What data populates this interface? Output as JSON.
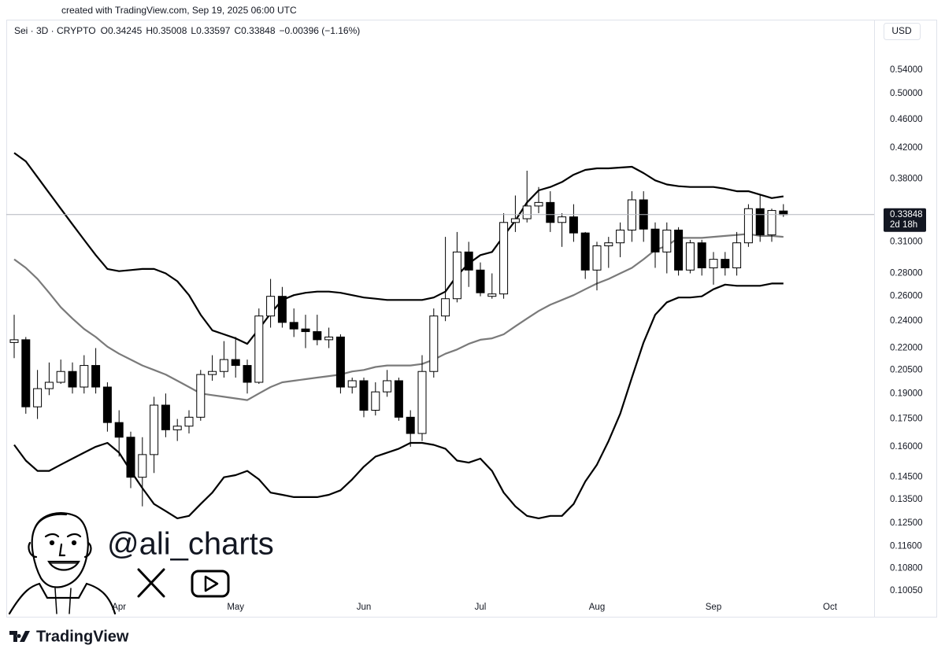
{
  "header": {
    "created": "created with TradingView.com, Sep 19, 2025 06:00 UTC",
    "symbol": "Sei · 3D · CRYPTO",
    "o": "O",
    "h": "H",
    "l": "L",
    "c": "C",
    "change": "−0.00396 (−1.16%)",
    "currency": "USD"
  },
  "watermark": {
    "handle": "@ali_charts"
  },
  "branding": "TradingView",
  "chart_data": {
    "type": "candlestick",
    "log_scale": true,
    "grid": false,
    "countdown": "2d 18h",
    "up_color": "#ffffff",
    "down_color": "#000000",
    "wick_color": "#000000",
    "band_color": "#000000",
    "basis_color": "#7a7a7a",
    "ylim": [
      0.0922,
      0.635
    ],
    "yticks": [
      {
        "value": 0.54,
        "label": "0.54000"
      },
      {
        "value": 0.5,
        "label": "0.50000"
      },
      {
        "value": 0.46,
        "label": "0.46000"
      },
      {
        "value": 0.42,
        "label": "0.42000"
      },
      {
        "value": 0.38,
        "label": "0.38000"
      },
      {
        "value": 0.31,
        "label": "0.31000"
      },
      {
        "value": 0.28,
        "label": "0.28000"
      },
      {
        "value": 0.26,
        "label": "0.26000"
      },
      {
        "value": 0.24,
        "label": "0.24000"
      },
      {
        "value": 0.22,
        "label": "0.22000"
      },
      {
        "value": 0.205,
        "label": "0.20500"
      },
      {
        "value": 0.19,
        "label": "0.19000"
      },
      {
        "value": 0.175,
        "label": "0.17500"
      },
      {
        "value": 0.16,
        "label": "0.16000"
      },
      {
        "value": 0.145,
        "label": "0.14500"
      },
      {
        "value": 0.135,
        "label": "0.13500"
      },
      {
        "value": 0.125,
        "label": "0.12500"
      },
      {
        "value": 0.116,
        "label": "0.11600"
      },
      {
        "value": 0.108,
        "label": "0.10800"
      },
      {
        "value": 0.1005,
        "label": "0.10050"
      }
    ],
    "categories": [
      null,
      null,
      null,
      null,
      null,
      null,
      null,
      null,
      null,
      "Apr",
      null,
      null,
      null,
      null,
      null,
      null,
      null,
      null,
      null,
      "May",
      null,
      null,
      null,
      null,
      null,
      null,
      null,
      null,
      null,
      null,
      "Jun",
      null,
      null,
      null,
      null,
      null,
      null,
      null,
      null,
      null,
      "Jul",
      null,
      null,
      null,
      null,
      null,
      null,
      null,
      null,
      null,
      "Aug",
      null,
      null,
      null,
      null,
      null,
      null,
      null,
      null,
      null,
      "Sep",
      null,
      null,
      null,
      null,
      null,
      null,
      null,
      null,
      null,
      "Oct"
    ],
    "open": [
      0.224,
      0.226,
      0.182,
      0.193,
      0.197,
      0.204,
      0.194,
      0.208,
      0.194,
      0.173,
      0.165,
      0.145,
      0.156,
      0.183,
      0.169,
      0.171,
      0.176,
      0.202,
      0.204,
      0.212,
      0.208,
      0.197,
      0.244,
      0.26,
      0.239,
      0.234,
      0.232,
      0.226,
      0.228,
      0.194,
      0.198,
      0.18,
      0.191,
      0.198,
      0.176,
      0.167,
      0.204,
      0.244,
      0.258,
      0.3,
      0.283,
      0.26,
      0.262,
      0.33,
      0.334,
      0.348,
      0.352,
      0.33,
      0.336,
      0.319,
      0.283,
      0.306,
      0.309,
      0.322,
      0.355,
      0.323,
      0.3,
      0.322,
      0.283,
      0.309,
      0.285,
      0.293,
      0.285,
      0.309,
      0.345,
      0.317,
      0.34245,
      null,
      null,
      null,
      null
    ],
    "high": [
      0.245,
      0.228,
      0.205,
      0.21,
      0.212,
      0.21,
      0.215,
      0.22,
      0.197,
      0.18,
      0.168,
      0.165,
      0.188,
      0.19,
      0.175,
      0.18,
      0.205,
      0.215,
      0.225,
      0.228,
      0.212,
      0.25,
      0.275,
      0.268,
      0.25,
      0.245,
      0.245,
      0.235,
      0.23,
      0.2,
      0.2,
      0.197,
      0.205,
      0.2,
      0.18,
      0.215,
      0.25,
      0.315,
      0.32,
      0.31,
      0.29,
      0.28,
      0.34,
      0.36,
      0.39,
      0.37,
      0.365,
      0.34,
      0.35,
      0.32,
      0.31,
      0.315,
      0.33,
      0.365,
      0.365,
      0.33,
      0.33,
      0.325,
      0.312,
      0.312,
      0.3,
      0.3,
      0.32,
      0.35,
      0.36,
      0.345,
      0.35008,
      null,
      null,
      null,
      null
    ],
    "low": [
      0.213,
      0.178,
      0.175,
      0.189,
      0.196,
      0.19,
      0.19,
      0.19,
      0.168,
      0.155,
      0.14,
      0.132,
      0.147,
      0.165,
      0.163,
      0.167,
      0.174,
      0.198,
      0.2,
      0.2,
      0.19,
      0.196,
      0.235,
      0.235,
      0.228,
      0.22,
      0.222,
      0.22,
      0.19,
      0.19,
      0.176,
      0.177,
      0.188,
      0.174,
      0.16,
      0.163,
      0.2,
      0.24,
      0.255,
      0.268,
      0.26,
      0.258,
      0.258,
      0.32,
      0.33,
      0.34,
      0.32,
      0.305,
      0.31,
      0.275,
      0.265,
      0.285,
      0.295,
      0.31,
      0.31,
      0.285,
      0.28,
      0.278,
      0.28,
      0.278,
      0.27,
      0.278,
      0.278,
      0.305,
      0.31,
      0.31,
      0.33597,
      null,
      null,
      null,
      null
    ],
    "close": [
      0.226,
      0.182,
      0.193,
      0.197,
      0.204,
      0.194,
      0.208,
      0.194,
      0.173,
      0.165,
      0.145,
      0.156,
      0.183,
      0.169,
      0.171,
      0.176,
      0.202,
      0.204,
      0.212,
      0.208,
      0.197,
      0.244,
      0.26,
      0.239,
      0.234,
      0.232,
      0.226,
      0.228,
      0.194,
      0.198,
      0.18,
      0.191,
      0.198,
      0.176,
      0.167,
      0.204,
      0.244,
      0.258,
      0.3,
      0.283,
      0.263,
      0.262,
      0.33,
      0.334,
      0.348,
      0.352,
      0.33,
      0.336,
      0.319,
      0.283,
      0.306,
      0.309,
      0.322,
      0.355,
      0.323,
      0.3,
      0.322,
      0.283,
      0.309,
      0.285,
      0.293,
      0.285,
      0.309,
      0.345,
      0.317,
      0.343,
      0.33848,
      null,
      null,
      null,
      null
    ],
    "bands": {
      "upper": [
        0.413,
        0.402,
        0.382,
        0.363,
        0.345,
        0.328,
        0.312,
        0.297,
        0.284,
        0.282,
        0.283,
        0.284,
        0.284,
        0.28,
        0.273,
        0.261,
        0.245,
        0.233,
        0.23,
        0.227,
        0.223,
        0.234,
        0.246,
        0.257,
        0.261,
        0.263,
        0.264,
        0.264,
        0.263,
        0.261,
        0.259,
        0.258,
        0.257,
        0.257,
        0.257,
        0.257,
        0.259,
        0.264,
        0.278,
        0.289,
        0.297,
        0.3,
        0.316,
        0.332,
        0.352,
        0.366,
        0.37,
        0.376,
        0.385,
        0.391,
        0.393,
        0.393,
        0.394,
        0.395,
        0.387,
        0.378,
        0.373,
        0.371,
        0.37,
        0.37,
        0.37,
        0.368,
        0.365,
        0.365,
        0.361,
        0.357,
        0.359,
        null,
        null,
        null,
        null
      ],
      "basis": [
        0.293,
        0.285,
        0.275,
        0.263,
        0.251,
        0.242,
        0.234,
        0.228,
        0.221,
        0.216,
        0.212,
        0.208,
        0.205,
        0.202,
        0.198,
        0.194,
        0.19,
        0.189,
        0.188,
        0.187,
        0.186,
        0.19,
        0.194,
        0.197,
        0.198,
        0.199,
        0.2,
        0.201,
        0.202,
        0.204,
        0.205,
        0.207,
        0.208,
        0.208,
        0.208,
        0.209,
        0.212,
        0.216,
        0.219,
        0.223,
        0.226,
        0.227,
        0.23,
        0.236,
        0.242,
        0.248,
        0.253,
        0.257,
        0.261,
        0.266,
        0.271,
        0.275,
        0.28,
        0.285,
        0.293,
        0.302,
        0.306,
        0.314,
        0.314,
        0.314,
        0.315,
        0.316,
        0.317,
        0.318,
        0.316,
        0.316,
        0.315,
        null,
        null,
        null,
        null
      ],
      "lower": [
        0.161,
        0.153,
        0.148,
        0.148,
        0.151,
        0.154,
        0.157,
        0.16,
        0.162,
        0.157,
        0.148,
        0.14,
        0.133,
        0.13,
        0.127,
        0.128,
        0.133,
        0.138,
        0.145,
        0.146,
        0.148,
        0.144,
        0.138,
        0.137,
        0.136,
        0.136,
        0.136,
        0.137,
        0.139,
        0.144,
        0.15,
        0.155,
        0.157,
        0.159,
        0.162,
        0.162,
        0.161,
        0.159,
        0.153,
        0.152,
        0.154,
        0.148,
        0.138,
        0.132,
        0.128,
        0.127,
        0.128,
        0.128,
        0.133,
        0.143,
        0.151,
        0.163,
        0.178,
        0.2,
        0.224,
        0.245,
        0.255,
        0.259,
        0.259,
        0.26,
        0.266,
        0.27,
        0.269,
        0.269,
        0.269,
        0.271,
        0.271,
        null,
        null,
        null,
        null
      ]
    }
  }
}
